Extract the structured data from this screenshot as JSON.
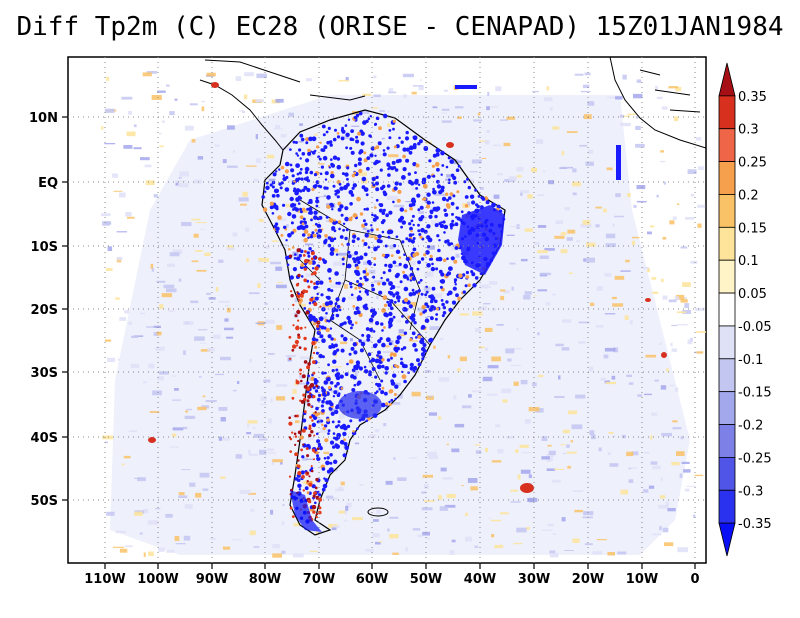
{
  "title": "Diff Tp2m (C) EC28 (ORISE - CENAPAD) 15Z01JAN1984",
  "map": {
    "lat_ticks": [
      "10N",
      "EQ",
      "10S",
      "20S",
      "30S",
      "40S",
      "50S"
    ],
    "lon_ticks": [
      "110W",
      "100W",
      "90W",
      "80W",
      "70W",
      "60W",
      "50W",
      "40W",
      "30W",
      "20W",
      "10W",
      "0"
    ],
    "grid": "dotted",
    "colors": {
      "land_outline": "#000000",
      "negative_strong": "#1a1aff",
      "negative_light": "#c8cdf5",
      "positive_light": "#f7d27a",
      "positive_strong": "#e23a1a"
    }
  },
  "colorbar": {
    "labels": [
      "0.35",
      "0.3",
      "0.25",
      "0.2",
      "0.15",
      "0.1",
      "0.05",
      "-0.05",
      "-0.1",
      "-0.15",
      "-0.2",
      "-0.25",
      "-0.3",
      "-0.35"
    ],
    "colors": [
      "#a50f15",
      "#d7301f",
      "#ef6548",
      "#f6a04d",
      "#f9c266",
      "#fde49a",
      "#fff4c8",
      "#ffffff",
      "#dfe1f7",
      "#c3c6f1",
      "#a3a7ec",
      "#7d80e6",
      "#5055e8",
      "#2a32f0",
      "#0a10f5"
    ]
  }
}
